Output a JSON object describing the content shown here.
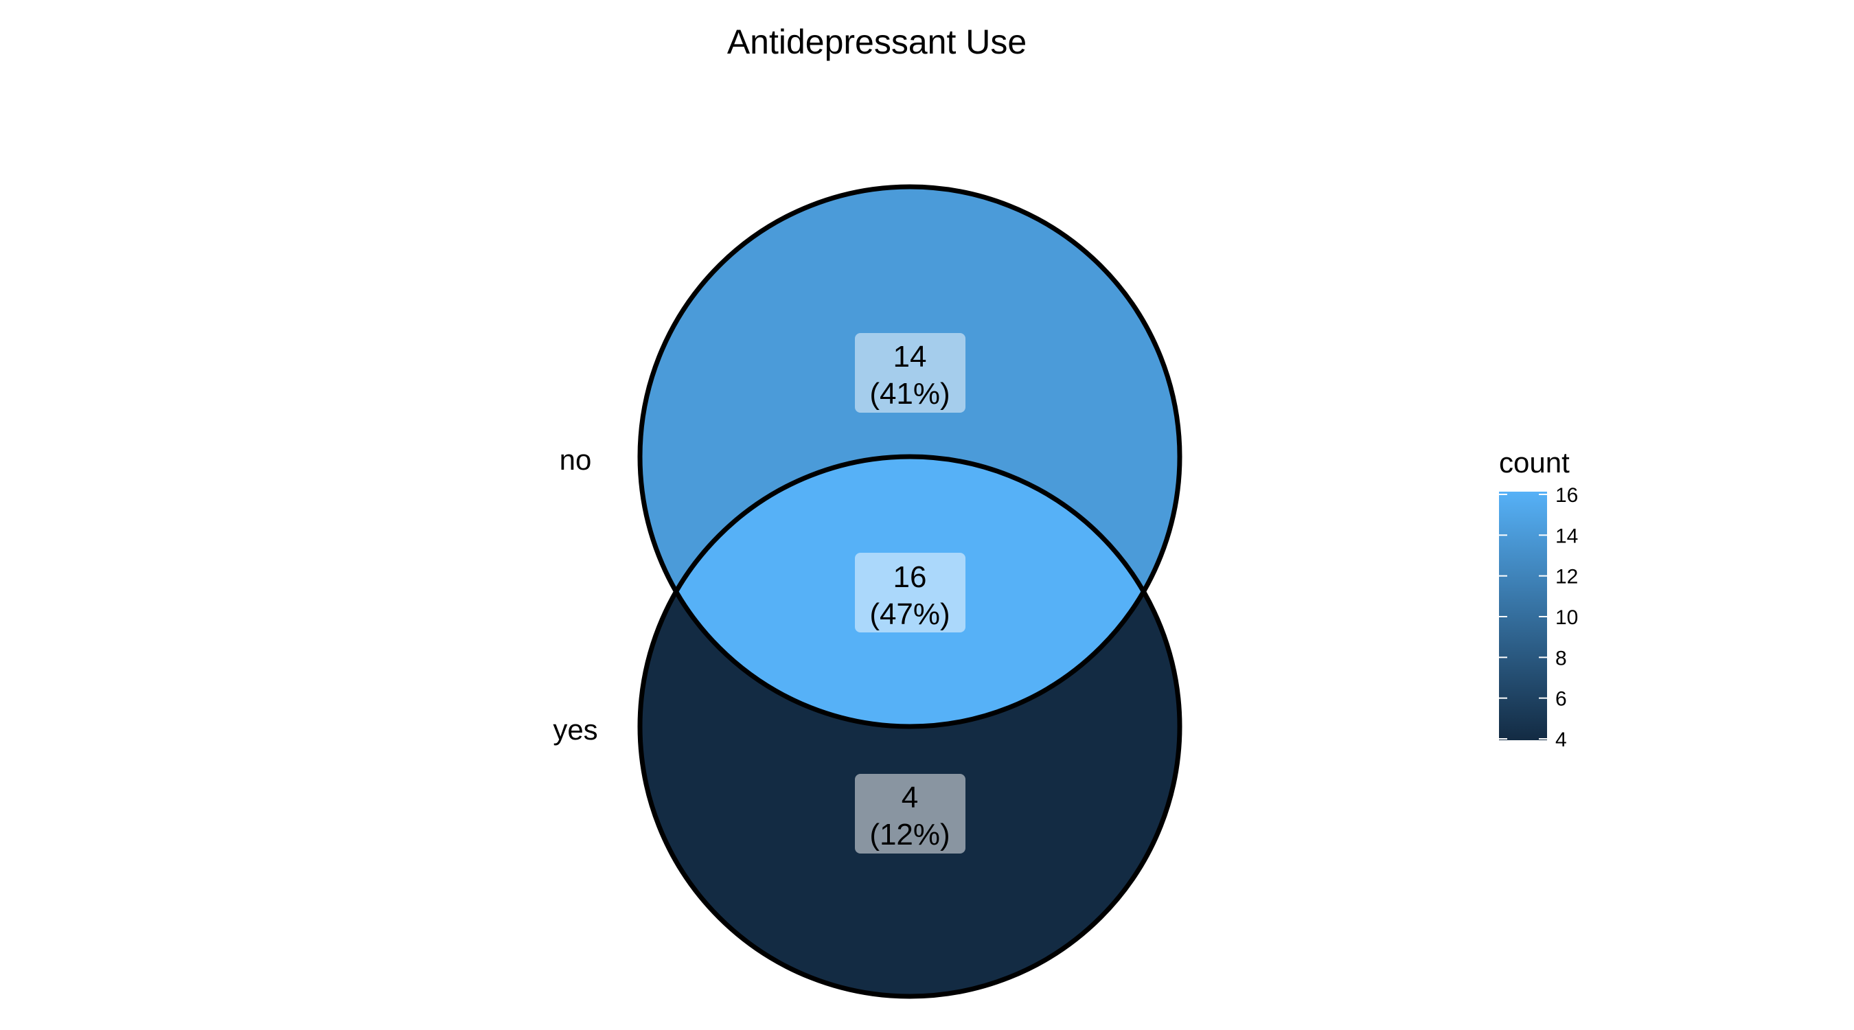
{
  "chart_data": {
    "type": "venn",
    "title": "Antidepressant Use",
    "sets": [
      "no",
      "yes"
    ],
    "regions": [
      {
        "name": "no-only",
        "sets": [
          "no"
        ],
        "count": 14,
        "label": "(41%)"
      },
      {
        "name": "no-and-yes",
        "sets": [
          "no",
          "yes"
        ],
        "count": 16,
        "label": "(47%)"
      },
      {
        "name": "yes-only",
        "sets": [
          "yes"
        ],
        "count": 4,
        "label": "(12%)"
      }
    ],
    "legend": {
      "title": "count",
      "placement": "right",
      "ticks": [
        4,
        6,
        8,
        10,
        12,
        14,
        16
      ],
      "range": [
        4,
        16
      ],
      "low_color": "#132b43",
      "high_color": "#56b1f7"
    }
  }
}
